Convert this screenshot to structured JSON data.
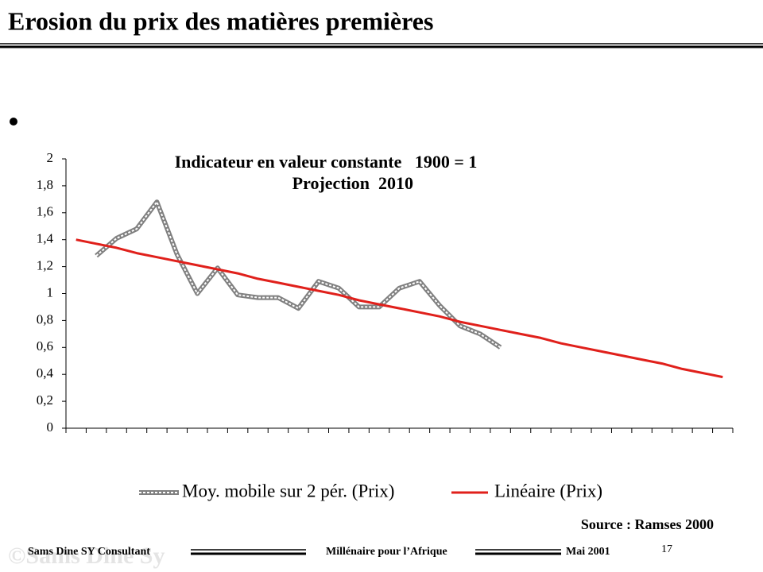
{
  "slide": {
    "title": "Erosion du prix des matières premières",
    "source": "Source : Ramses 2000",
    "footer": {
      "author": "Sams Dine SY Consultant",
      "center": "Millénaire pour l’Afrique",
      "date": "Mai 2001",
      "page": "17",
      "watermark": "©Sams Dine Sy"
    }
  },
  "chart_data": {
    "type": "line",
    "title": "Indicateur en valeur constante   1900 = 1",
    "subtitle": "Projection  2010",
    "categories": [
      null,
      null,
      null,
      null,
      null,
      null,
      null,
      null,
      null,
      null,
      null,
      null,
      null,
      null,
      null,
      null,
      null,
      null,
      null,
      null,
      null,
      null,
      null,
      null,
      null,
      null,
      null,
      null,
      null,
      null,
      null,
      null,
      null
    ],
    "series": [
      {
        "name": "Moy. mobile sur 2 pér. (Prix)",
        "color": "#808080",
        "values": [
          null,
          1.28,
          1.41,
          1.48,
          1.68,
          1.29,
          1.0,
          1.19,
          0.99,
          0.97,
          0.97,
          0.89,
          1.09,
          1.04,
          0.9,
          0.9,
          1.04,
          1.09,
          0.91,
          0.76,
          0.7,
          0.6,
          null,
          null,
          null,
          null,
          null,
          null,
          null,
          null,
          null,
          null,
          null
        ]
      },
      {
        "name": "Linéaire (Prix)",
        "color": "#e0201b",
        "values": [
          1.4,
          1.37,
          1.34,
          1.3,
          1.27,
          1.24,
          1.21,
          1.18,
          1.15,
          1.11,
          1.08,
          1.05,
          1.02,
          0.99,
          0.95,
          0.92,
          0.89,
          0.86,
          0.83,
          0.79,
          0.76,
          0.73,
          0.7,
          0.67,
          0.63,
          0.6,
          0.57,
          0.54,
          0.51,
          0.48,
          0.44,
          0.41,
          0.38
        ]
      }
    ],
    "ylim": [
      0,
      2
    ],
    "yticks": [
      0,
      {
        "value": 0.2,
        "label": "0,2"
      },
      {
        "value": 0.4,
        "label": "0,4"
      },
      {
        "value": 0.6,
        "label": "0,6"
      },
      {
        "value": 0.8,
        "label": "0,8"
      },
      1,
      {
        "value": 1.2,
        "label": "1,2"
      },
      {
        "value": 1.4,
        "label": "1,4"
      },
      {
        "value": 1.6,
        "label": "1,6"
      },
      {
        "value": 1.8,
        "label": "1,8"
      },
      2
    ],
    "grid": false,
    "legend": "bottom"
  }
}
